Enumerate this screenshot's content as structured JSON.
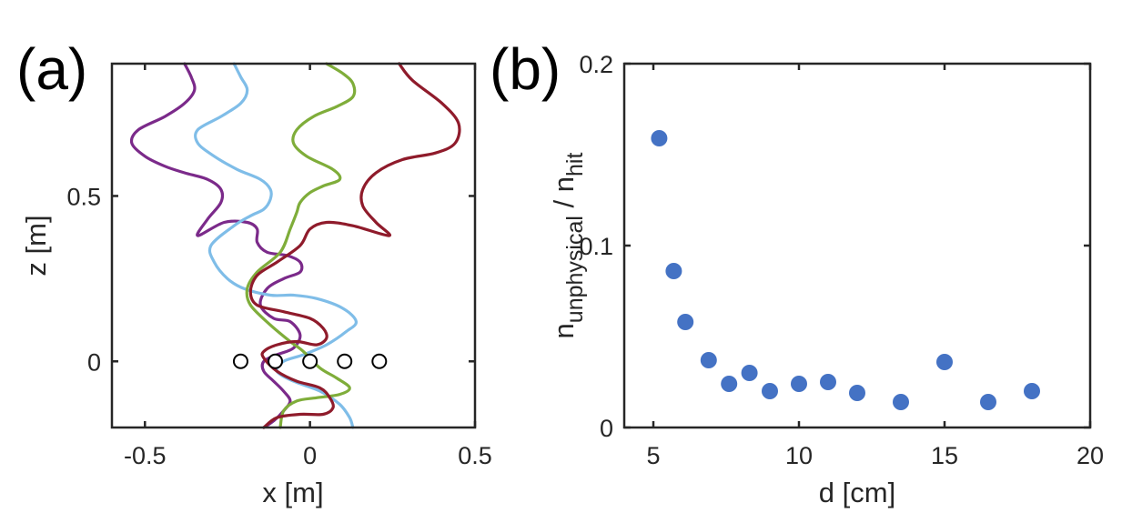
{
  "panels": [
    {
      "id": "a",
      "label": "(a)",
      "chart_data": {
        "type": "line",
        "xlabel": "x [m]",
        "ylabel": "z [m]",
        "xlim": [
          -0.6,
          0.5
        ],
        "ylim": [
          -0.2,
          0.9
        ],
        "xticks": [
          "-0.5",
          "0",
          "0.5"
        ],
        "yticks": [
          "0",
          "0.5"
        ],
        "xtick_values": [
          -0.5,
          0,
          0.5
        ],
        "ytick_values": [
          0,
          0.5
        ],
        "grid": false,
        "colors": [
          "#7b2a8a",
          "#7fbde8",
          "#7fad3a",
          "#8f1b2b"
        ],
        "series": [
          {
            "color": "#7b2a8a",
            "x": [
              -0.38,
              -0.36,
              -0.35,
              -0.38,
              -0.44,
              -0.52,
              -0.54,
              -0.5,
              -0.44,
              -0.38,
              -0.31,
              -0.27,
              -0.27,
              -0.31,
              -0.34,
              -0.26,
              -0.19,
              -0.16,
              -0.16,
              -0.13,
              -0.07,
              -0.03,
              -0.03,
              -0.08,
              -0.13,
              -0.15,
              -0.11,
              -0.06,
              -0.03,
              -0.05,
              -0.1,
              -0.14,
              -0.14,
              -0.11,
              -0.08,
              -0.06,
              -0.08,
              -0.11,
              -0.14
            ],
            "y": [
              0.9,
              0.86,
              0.82,
              0.78,
              0.74,
              0.7,
              0.66,
              0.62,
              0.59,
              0.57,
              0.55,
              0.52,
              0.48,
              0.43,
              0.38,
              0.42,
              0.42,
              0.4,
              0.36,
              0.33,
              0.32,
              0.3,
              0.27,
              0.25,
              0.22,
              0.17,
              0.13,
              0.12,
              0.08,
              0.04,
              0.02,
              0.0,
              -0.03,
              -0.06,
              -0.09,
              -0.12,
              -0.15,
              -0.18,
              -0.2
            ]
          },
          {
            "color": "#7fbde8",
            "x": [
              -0.23,
              -0.21,
              -0.19,
              -0.21,
              -0.27,
              -0.34,
              -0.34,
              -0.29,
              -0.22,
              -0.15,
              -0.12,
              -0.12,
              -0.14,
              -0.18,
              -0.23,
              -0.3,
              -0.29,
              -0.25,
              -0.2,
              -0.12,
              -0.05,
              0.02,
              0.1,
              0.14,
              0.11,
              0.05,
              -0.02,
              -0.08,
              -0.1,
              -0.05,
              0.03,
              0.09,
              0.12,
              0.13
            ],
            "y": [
              0.9,
              0.86,
              0.82,
              0.78,
              0.74,
              0.7,
              0.66,
              0.62,
              0.58,
              0.55,
              0.52,
              0.49,
              0.46,
              0.44,
              0.41,
              0.35,
              0.3,
              0.25,
              0.22,
              0.2,
              0.2,
              0.19,
              0.16,
              0.12,
              0.09,
              0.05,
              0.02,
              0.0,
              -0.03,
              -0.06,
              -0.09,
              -0.13,
              -0.17,
              -0.2
            ]
          },
          {
            "color": "#7fad3a",
            "x": [
              0.05,
              0.1,
              0.13,
              0.13,
              0.08,
              0.01,
              -0.04,
              -0.05,
              -0.01,
              0.07,
              0.09,
              0.04,
              0.0,
              -0.03,
              -0.04,
              -0.06,
              -0.09,
              -0.16,
              -0.19,
              -0.18,
              -0.12,
              -0.06,
              -0.02,
              0.03,
              0.08,
              0.12,
              0.09,
              0.02,
              -0.04,
              -0.08,
              -0.09
            ],
            "y": [
              0.9,
              0.87,
              0.84,
              0.8,
              0.77,
              0.74,
              0.7,
              0.66,
              0.62,
              0.58,
              0.55,
              0.53,
              0.51,
              0.48,
              0.45,
              0.4,
              0.33,
              0.27,
              0.22,
              0.17,
              0.11,
              0.06,
              0.03,
              -0.02,
              -0.05,
              -0.08,
              -0.1,
              -0.11,
              -0.12,
              -0.15,
              -0.2
            ]
          },
          {
            "color": "#8f1b2b",
            "x": [
              0.27,
              0.31,
              0.4,
              0.45,
              0.44,
              0.38,
              0.28,
              0.2,
              0.16,
              0.16,
              0.2,
              0.24,
              0.13,
              0.05,
              0.0,
              -0.03,
              -0.1,
              -0.16,
              -0.18,
              -0.16,
              -0.08,
              0.0,
              0.04,
              0.05,
              0.02,
              -0.04,
              -0.1,
              -0.14,
              -0.14,
              -0.1,
              -0.04,
              0.03,
              0.06,
              0.07,
              0.04,
              -0.03,
              -0.1,
              -0.14
            ],
            "y": [
              0.9,
              0.85,
              0.78,
              0.72,
              0.66,
              0.63,
              0.61,
              0.57,
              0.52,
              0.47,
              0.42,
              0.38,
              0.41,
              0.42,
              0.4,
              0.35,
              0.3,
              0.26,
              0.21,
              0.17,
              0.15,
              0.13,
              0.1,
              0.07,
              0.05,
              0.06,
              0.05,
              0.03,
              0.01,
              -0.03,
              -0.06,
              -0.08,
              -0.11,
              -0.14,
              -0.16,
              -0.16,
              -0.17,
              -0.2
            ]
          }
        ],
        "markers": {
          "shape": "open-circle",
          "x": [
            -0.21,
            -0.105,
            0.0,
            0.105,
            0.21
          ],
          "y": [
            0,
            0,
            0,
            0,
            0
          ]
        }
      }
    },
    {
      "id": "b",
      "label": "(b)",
      "chart_data": {
        "type": "scatter",
        "xlabel": "d [cm]",
        "ylabel_main": "n",
        "ylabel_sub1": "unphysical",
        "ylabel_sep": " / n",
        "ylabel_sub2": "hit",
        "xlim": [
          4,
          20
        ],
        "ylim": [
          0,
          0.2
        ],
        "xticks": [
          "5",
          "10",
          "15",
          "20"
        ],
        "yticks": [
          "0",
          "0.1",
          "0.2"
        ],
        "xtick_values": [
          5,
          10,
          15,
          20
        ],
        "ytick_values": [
          0,
          0.1,
          0.2
        ],
        "grid": false,
        "color": "#4472c4",
        "x": [
          5.2,
          5.7,
          6.1,
          6.9,
          7.6,
          8.3,
          9.0,
          10.0,
          11.0,
          12.0,
          13.5,
          15.0,
          16.5,
          18.0
        ],
        "y": [
          0.159,
          0.086,
          0.058,
          0.037,
          0.024,
          0.03,
          0.02,
          0.024,
          0.025,
          0.019,
          0.014,
          0.036,
          0.014,
          0.02
        ]
      }
    }
  ]
}
